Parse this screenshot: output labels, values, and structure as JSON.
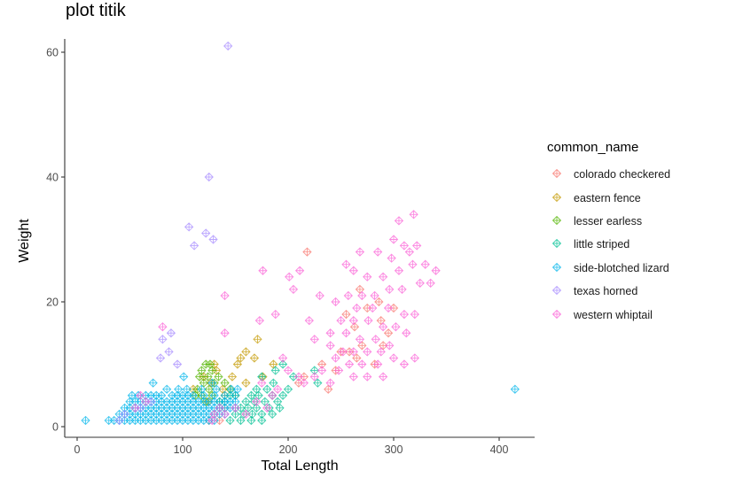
{
  "chart_data": {
    "type": "scatter",
    "title": "plot titik",
    "xlabel": "Total Length",
    "ylabel": "Weight",
    "xlim": [
      -6,
      420
    ],
    "ylim": [
      -1,
      63
    ],
    "x_ticks": [
      0,
      100,
      200,
      300,
      400
    ],
    "y_ticks": [
      0,
      20,
      40,
      60
    ],
    "grid": false,
    "legend_position": "right",
    "legend_title": "common_name",
    "marker": "diamond-plus",
    "series": [
      {
        "name": "colorado checkered",
        "color": "#F8766D",
        "points": [
          [
            218,
            28
          ],
          [
            250,
            12
          ],
          [
            215,
            8
          ],
          [
            232,
            10
          ],
          [
            263,
            16
          ],
          [
            270,
            13
          ],
          [
            282,
            10
          ],
          [
            288,
            17
          ],
          [
            295,
            15
          ],
          [
            300,
            19
          ],
          [
            275,
            19
          ],
          [
            258,
            12
          ],
          [
            245,
            9
          ],
          [
            238,
            6
          ],
          [
            265,
            11
          ],
          [
            286,
            20
          ],
          [
            268,
            22
          ],
          [
            210,
            7
          ],
          [
            255,
            18
          ],
          [
            290,
            13
          ],
          [
            130,
            2
          ],
          [
            140,
            3
          ],
          [
            125,
            1
          ],
          [
            135,
            1
          ]
        ]
      },
      {
        "name": "eastern fence",
        "color": "#C49A00",
        "points": [
          [
            171,
            14
          ],
          [
            160,
            12
          ],
          [
            155,
            11
          ],
          [
            168,
            11
          ],
          [
            152,
            10
          ],
          [
            147,
            8
          ],
          [
            138,
            6
          ],
          [
            160,
            7
          ],
          [
            186,
            10
          ],
          [
            176,
            8
          ],
          [
            130,
            10
          ],
          [
            132,
            9
          ],
          [
            120,
            8
          ],
          [
            127,
            7
          ],
          [
            140,
            5
          ],
          [
            110,
            6
          ],
          [
            124,
            4
          ]
        ]
      },
      {
        "name": "lesser earless",
        "color": "#53B400",
        "points": [
          [
            122,
            10
          ],
          [
            126,
            10
          ],
          [
            118,
            9
          ],
          [
            128,
            9
          ],
          [
            116,
            8
          ],
          [
            124,
            8
          ],
          [
            120,
            7
          ],
          [
            130,
            7
          ],
          [
            114,
            6
          ],
          [
            125,
            6
          ],
          [
            118,
            5
          ],
          [
            128,
            5
          ],
          [
            122,
            4
          ],
          [
            112,
            5
          ],
          [
            134,
            8
          ],
          [
            140,
            7
          ],
          [
            145,
            6
          ],
          [
            150,
            5
          ],
          [
            135,
            4
          ]
        ]
      },
      {
        "name": "little striped",
        "color": "#00C094",
        "points": [
          [
            195,
            10
          ],
          [
            188,
            9
          ],
          [
            175,
            8
          ],
          [
            170,
            6
          ],
          [
            180,
            6
          ],
          [
            165,
            5
          ],
          [
            172,
            5
          ],
          [
            185,
            5
          ],
          [
            160,
            4
          ],
          [
            168,
            4
          ],
          [
            178,
            4
          ],
          [
            190,
            4
          ],
          [
            155,
            3
          ],
          [
            162,
            3
          ],
          [
            170,
            3
          ],
          [
            182,
            3
          ],
          [
            192,
            3
          ],
          [
            150,
            2
          ],
          [
            158,
            2
          ],
          [
            166,
            2
          ],
          [
            175,
            2
          ],
          [
            185,
            2
          ],
          [
            145,
            1
          ],
          [
            155,
            1
          ],
          [
            165,
            1
          ],
          [
            175,
            1
          ],
          [
            195,
            5
          ],
          [
            200,
            6
          ],
          [
            205,
            8
          ],
          [
            225,
            9
          ],
          [
            228,
            7
          ],
          [
            186,
            7
          ],
          [
            140,
            4
          ],
          [
            135,
            3
          ],
          [
            145,
            5
          ]
        ]
      },
      {
        "name": "side-blotched lizard",
        "color": "#00B6EB",
        "points": [
          [
            8,
            1
          ],
          [
            415,
            6
          ],
          [
            101,
            8
          ],
          [
            72,
            7
          ],
          [
            85,
            6
          ],
          [
            52,
            5
          ],
          [
            58,
            5
          ],
          [
            65,
            5
          ],
          [
            70,
            5
          ],
          [
            75,
            5
          ],
          [
            80,
            5
          ],
          [
            90,
            5
          ],
          [
            95,
            5
          ],
          [
            100,
            5
          ],
          [
            105,
            5
          ],
          [
            110,
            5
          ],
          [
            120,
            5
          ],
          [
            130,
            5
          ],
          [
            140,
            5
          ],
          [
            150,
            5
          ],
          [
            50,
            4
          ],
          [
            55,
            4
          ],
          [
            60,
            4
          ],
          [
            65,
            4
          ],
          [
            70,
            4
          ],
          [
            75,
            4
          ],
          [
            80,
            4
          ],
          [
            85,
            4
          ],
          [
            90,
            4
          ],
          [
            95,
            4
          ],
          [
            100,
            4
          ],
          [
            105,
            4
          ],
          [
            110,
            4
          ],
          [
            115,
            4
          ],
          [
            120,
            4
          ],
          [
            125,
            4
          ],
          [
            130,
            4
          ],
          [
            135,
            4
          ],
          [
            140,
            4
          ],
          [
            145,
            4
          ],
          [
            150,
            4
          ],
          [
            45,
            3
          ],
          [
            50,
            3
          ],
          [
            55,
            3
          ],
          [
            60,
            3
          ],
          [
            65,
            3
          ],
          [
            70,
            3
          ],
          [
            75,
            3
          ],
          [
            80,
            3
          ],
          [
            85,
            3
          ],
          [
            90,
            3
          ],
          [
            95,
            3
          ],
          [
            100,
            3
          ],
          [
            105,
            3
          ],
          [
            110,
            3
          ],
          [
            115,
            3
          ],
          [
            120,
            3
          ],
          [
            125,
            3
          ],
          [
            130,
            3
          ],
          [
            135,
            3
          ],
          [
            140,
            3
          ],
          [
            145,
            3
          ],
          [
            150,
            3
          ],
          [
            40,
            2
          ],
          [
            45,
            2
          ],
          [
            50,
            2
          ],
          [
            55,
            2
          ],
          [
            60,
            2
          ],
          [
            65,
            2
          ],
          [
            70,
            2
          ],
          [
            75,
            2
          ],
          [
            80,
            2
          ],
          [
            85,
            2
          ],
          [
            90,
            2
          ],
          [
            95,
            2
          ],
          [
            100,
            2
          ],
          [
            105,
            2
          ],
          [
            110,
            2
          ],
          [
            115,
            2
          ],
          [
            120,
            2
          ],
          [
            125,
            2
          ],
          [
            130,
            2
          ],
          [
            135,
            2
          ],
          [
            140,
            2
          ],
          [
            30,
            1
          ],
          [
            35,
            1
          ],
          [
            40,
            1
          ],
          [
            45,
            1
          ],
          [
            50,
            1
          ],
          [
            55,
            1
          ],
          [
            60,
            1
          ],
          [
            65,
            1
          ],
          [
            70,
            1
          ],
          [
            75,
            1
          ],
          [
            80,
            1
          ],
          [
            85,
            1
          ],
          [
            90,
            1
          ],
          [
            95,
            1
          ],
          [
            100,
            1
          ],
          [
            105,
            1
          ],
          [
            110,
            1
          ],
          [
            115,
            1
          ],
          [
            120,
            1
          ],
          [
            125,
            1
          ],
          [
            130,
            1
          ],
          [
            96,
            6
          ],
          [
            104,
            6
          ],
          [
            118,
            6
          ],
          [
            132,
            6
          ],
          [
            146,
            6
          ],
          [
            152,
            6
          ],
          [
            128,
            7
          ]
        ]
      },
      {
        "name": "texas horned",
        "color": "#A58AFF",
        "points": [
          [
            143,
            61
          ],
          [
            125,
            40
          ],
          [
            106,
            32
          ],
          [
            122,
            31
          ],
          [
            129,
            30
          ],
          [
            111,
            29
          ],
          [
            89,
            15
          ],
          [
            81,
            14
          ],
          [
            87,
            12
          ],
          [
            79,
            11
          ],
          [
            95,
            10
          ],
          [
            60,
            3
          ],
          [
            45,
            2
          ],
          [
            40,
            1
          ],
          [
            70,
            4
          ]
        ]
      },
      {
        "name": "western whiptail",
        "color": "#FB61D7",
        "points": [
          [
            81,
            16
          ],
          [
            176,
            25
          ],
          [
            211,
            25
          ],
          [
            201,
            24
          ],
          [
            205,
            22
          ],
          [
            140,
            21
          ],
          [
            230,
            21
          ],
          [
            188,
            18
          ],
          [
            173,
            17
          ],
          [
            220,
            17
          ],
          [
            140,
            15
          ],
          [
            225,
            14
          ],
          [
            319,
            34
          ],
          [
            305,
            33
          ],
          [
            300,
            30
          ],
          [
            310,
            29
          ],
          [
            315,
            28
          ],
          [
            322,
            29
          ],
          [
            298,
            27
          ],
          [
            285,
            28
          ],
          [
            268,
            28
          ],
          [
            255,
            26
          ],
          [
            262,
            25
          ],
          [
            275,
            24
          ],
          [
            290,
            24
          ],
          [
            305,
            25
          ],
          [
            318,
            26
          ],
          [
            330,
            26
          ],
          [
            340,
            25
          ],
          [
            335,
            23
          ],
          [
            325,
            23
          ],
          [
            308,
            22
          ],
          [
            296,
            22
          ],
          [
            282,
            21
          ],
          [
            270,
            21
          ],
          [
            257,
            21
          ],
          [
            245,
            20
          ],
          [
            265,
            19
          ],
          [
            280,
            19
          ],
          [
            295,
            19
          ],
          [
            310,
            18
          ],
          [
            320,
            18
          ],
          [
            250,
            17
          ],
          [
            262,
            17
          ],
          [
            276,
            17
          ],
          [
            290,
            16
          ],
          [
            302,
            16
          ],
          [
            312,
            15
          ],
          [
            240,
            15
          ],
          [
            255,
            15
          ],
          [
            268,
            14
          ],
          [
            283,
            14
          ],
          [
            296,
            13
          ],
          [
            240,
            13
          ],
          [
            252,
            12
          ],
          [
            262,
            12
          ],
          [
            275,
            12
          ],
          [
            288,
            12
          ],
          [
            300,
            11
          ],
          [
            320,
            11
          ],
          [
            245,
            11
          ],
          [
            258,
            10
          ],
          [
            270,
            10
          ],
          [
            285,
            10
          ],
          [
            232,
            9
          ],
          [
            248,
            9
          ],
          [
            262,
            8
          ],
          [
            275,
            8
          ],
          [
            290,
            8
          ],
          [
            225,
            8
          ],
          [
            240,
            7
          ],
          [
            310,
            10
          ],
          [
            195,
            11
          ],
          [
            200,
            9
          ],
          [
            210,
            8
          ],
          [
            215,
            7
          ],
          [
            60,
            5
          ],
          [
            65,
            4
          ],
          [
            55,
            3
          ],
          [
            130,
            2
          ],
          [
            135,
            3
          ],
          [
            128,
            1
          ],
          [
            140,
            2
          ],
          [
            150,
            3
          ],
          [
            160,
            2
          ],
          [
            170,
            4
          ],
          [
            180,
            3
          ],
          [
            190,
            6
          ],
          [
            185,
            5
          ],
          [
            175,
            7
          ]
        ]
      }
    ]
  },
  "legend": {
    "title": "common_name",
    "items": [
      {
        "label": "colorado checkered",
        "color": "#F8766D"
      },
      {
        "label": "eastern fence",
        "color": "#C49A00"
      },
      {
        "label": "lesser earless",
        "color": "#53B400"
      },
      {
        "label": "little striped",
        "color": "#00C094"
      },
      {
        "label": "side-blotched lizard",
        "color": "#00B6EB"
      },
      {
        "label": "texas horned",
        "color": "#A58AFF"
      },
      {
        "label": "western whiptail",
        "color": "#FB61D7"
      }
    ]
  }
}
